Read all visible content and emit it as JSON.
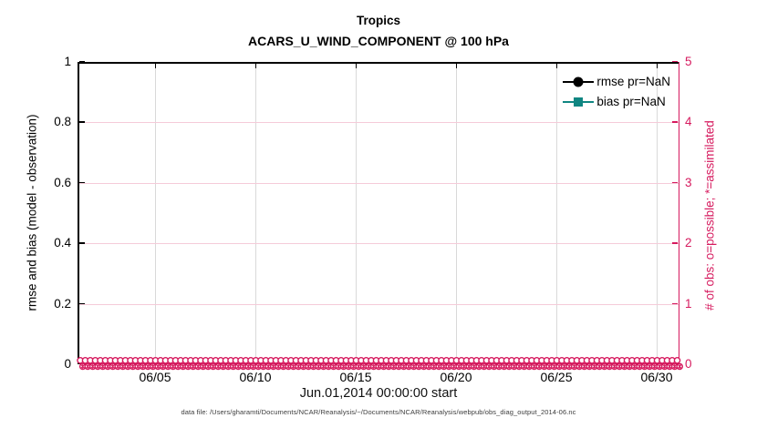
{
  "title": {
    "line1": "Tropics",
    "line2": "ACARS_U_WIND_COMPONENT @ 100 hPa"
  },
  "axes": {
    "left": {
      "label": "rmse and bias (model - observation)",
      "ticks": [
        "0",
        "0.2",
        "0.4",
        "0.6",
        "0.8",
        "1"
      ],
      "lim": [
        0,
        1
      ],
      "color": "#000000"
    },
    "right": {
      "label": "# of obs: o=possible; *=assimilated",
      "ticks": [
        "0",
        "1",
        "2",
        "3",
        "4",
        "5"
      ],
      "lim": [
        0,
        5
      ],
      "color": "#d61a5e"
    },
    "x": {
      "label": "Jun.01,2014 00:00:00 start",
      "ticks": [
        "06/05",
        "06/10",
        "06/15",
        "06/20",
        "06/25",
        "06/30"
      ]
    }
  },
  "legend": [
    {
      "label": "rmse pr=NaN",
      "marker": "circle",
      "color": "#000000"
    },
    {
      "label": "bias pr=NaN",
      "marker": "square",
      "color": "#108682"
    }
  ],
  "grid": {
    "v_color": "#d9d9d9",
    "h_color": "#f5cbd9"
  },
  "chart_data": {
    "type": "line",
    "title": "Tropics",
    "subtitle": "ACARS_U_WIND_COMPONENT @ 100 hPa",
    "xlabel": "Jun.01,2014 00:00:00 start",
    "x_tick_labels": [
      "06/05",
      "06/10",
      "06/15",
      "06/20",
      "06/25",
      "06/30"
    ],
    "x_range": [
      "06/01",
      "06/31"
    ],
    "ylabel_left": "rmse and bias (model - observation)",
    "ylim_left": [
      0,
      1
    ],
    "yticks_left": [
      0,
      0.2,
      0.4,
      0.6,
      0.8,
      1
    ],
    "ylabel_right": "# of obs: o=possible; *=assimilated",
    "ylim_right": [
      0,
      5
    ],
    "yticks_right": [
      0,
      1,
      2,
      3,
      4,
      5
    ],
    "grid": "on",
    "legend_position": "top-right-inside",
    "series": [
      {
        "name": "rmse pr=NaN",
        "axis": "left",
        "color": "#000000",
        "marker": "filled-circle",
        "values": "NaN (no curve plotted)"
      },
      {
        "name": "bias pr=NaN",
        "axis": "left",
        "color": "#108682",
        "marker": "filled-square",
        "values": "NaN (no curve plotted)"
      },
      {
        "name": "# of obs possible (o)",
        "axis": "right",
        "color": "#d61a5e",
        "marker": "o",
        "constant_value": 0,
        "note": "dense markers at 0 across entire June 2014 x-range"
      },
      {
        "name": "# of obs assimilated (*)",
        "axis": "right",
        "color": "#d61a5e",
        "marker": "*",
        "constant_value": 0,
        "note": "dense markers at 0 across entire June 2014 x-range"
      }
    ]
  },
  "footer": {
    "datafile": "data file: /Users/gharamti/Documents/NCAR/Reanalysis/~/Documents/NCAR/Reanalysis/webpub/obs_diag_output_2014-06.nc"
  }
}
